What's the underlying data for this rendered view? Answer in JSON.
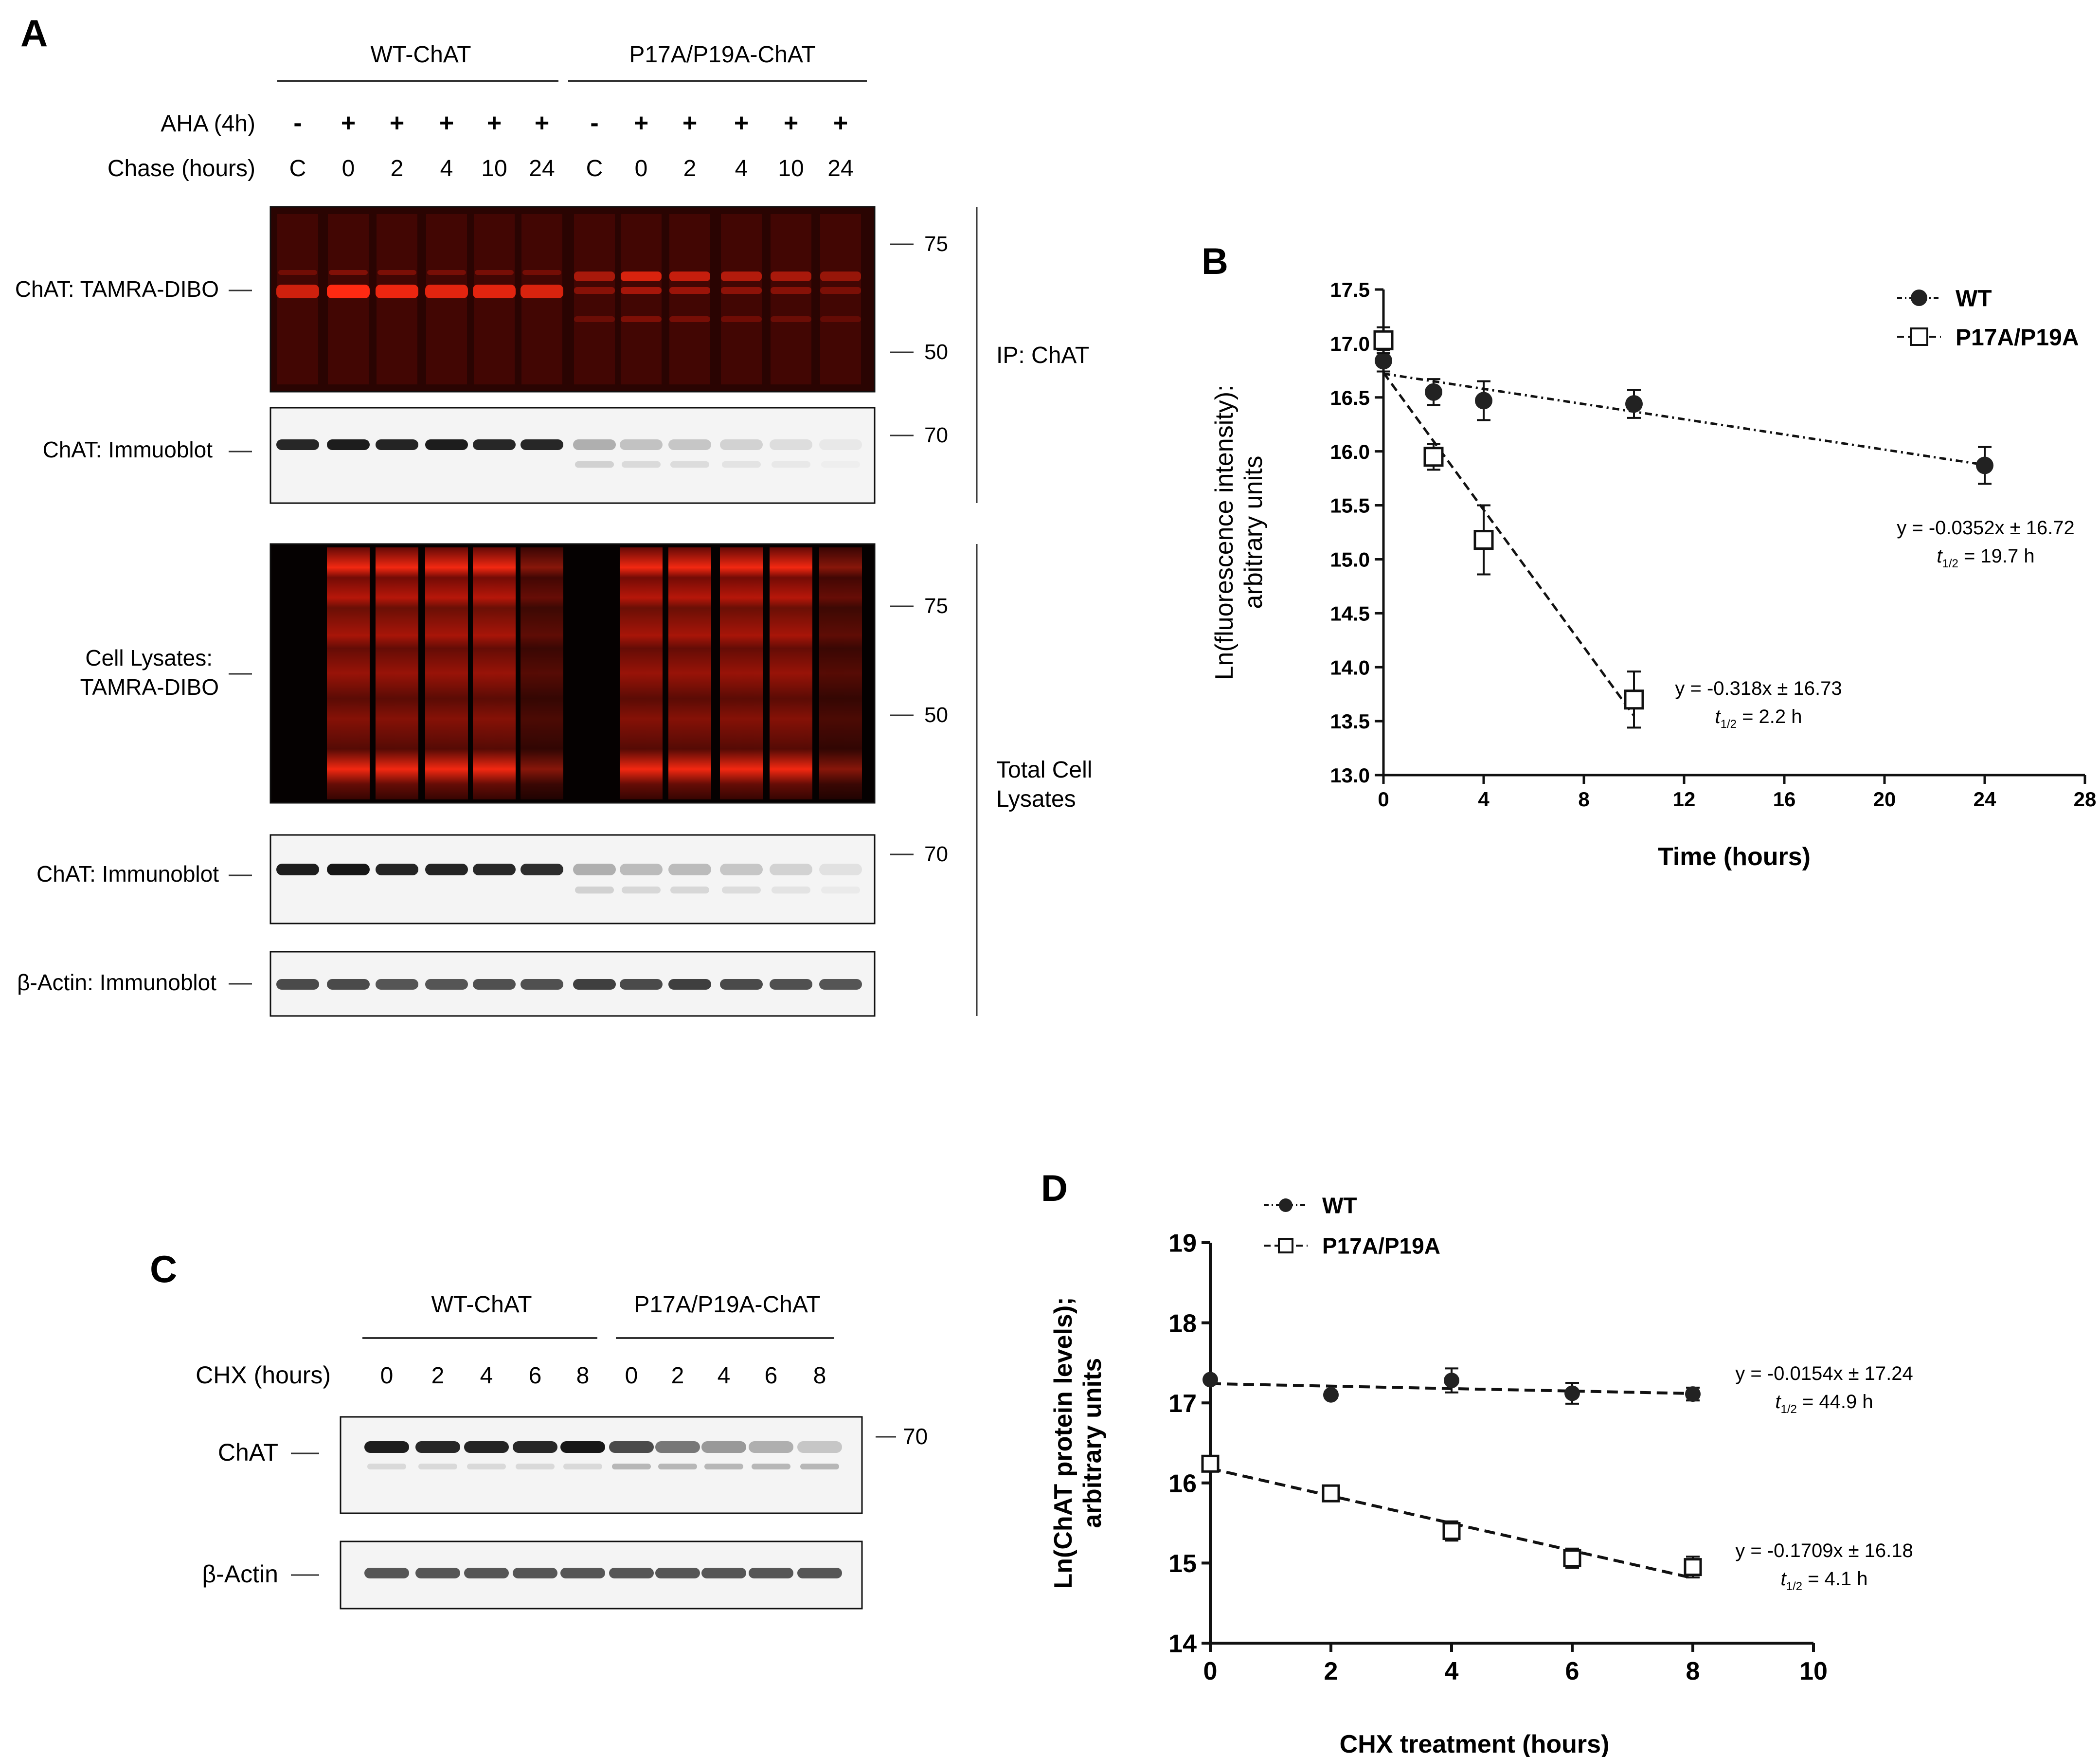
{
  "panelA": {
    "letter": "A",
    "groups": [
      "WT-ChAT",
      "P17A/P19A-ChAT"
    ],
    "aha_label": "AHA (4h)",
    "aha_marks": [
      "-",
      "+",
      "+",
      "+",
      "+",
      "+",
      "-",
      "+",
      "+",
      "+",
      "+",
      "+"
    ],
    "chase_label": "Chase (hours)",
    "chase_values": [
      "C",
      "0",
      "2",
      "4",
      "10",
      "24",
      "C",
      "0",
      "2",
      "4",
      "10",
      "24"
    ],
    "blot_labels": [
      "ChAT: TAMRA-DIBO",
      "ChAT: Immuoblot",
      "Cell Lysates:",
      "TAMRA-DIBO",
      "ChAT: Immunoblot",
      "β-Actin: Immunoblot"
    ],
    "markers": [
      "75",
      "50",
      "70",
      "75",
      "50",
      "70"
    ],
    "sections": [
      "IP: ChAT",
      "Total Cell",
      "Lysates"
    ]
  },
  "panelC": {
    "letter": "C",
    "groups": [
      "WT-ChAT",
      "P17A/P19A-ChAT"
    ],
    "chx_label": "CHX (hours)",
    "chx_values": [
      "0",
      "2",
      "4",
      "6",
      "8",
      "0",
      "2",
      "4",
      "6",
      "8"
    ],
    "blot_labels": [
      "ChAT",
      "β-Actin"
    ],
    "marker": "70"
  },
  "chart_data": [
    {
      "panel": "B",
      "type": "scatter",
      "xlabel": "Time (hours)",
      "ylabel": [
        "Ln(fluorescence intensity):",
        "arbitrary units"
      ],
      "xlim": [
        0,
        28
      ],
      "ylim": [
        13.0,
        17.5
      ],
      "xticks": [
        "0",
        "4",
        "8",
        "12",
        "16",
        "20",
        "24",
        "28"
      ],
      "yticks": [
        "13.0",
        "13.5",
        "14.0",
        "14.5",
        "15.0",
        "15.5",
        "16.0",
        "16.5",
        "17.0",
        "17.5"
      ],
      "legend": "top-right",
      "series": [
        {
          "name": "WT",
          "marker": "filled-circle",
          "x": [
            0,
            2,
            4,
            10,
            24
          ],
          "y": [
            16.84,
            16.55,
            16.47,
            16.44,
            15.87
          ],
          "err": [
            0.1,
            0.12,
            0.18,
            0.13,
            0.17
          ],
          "fit": {
            "slope": -0.0352,
            "intercept": 16.72
          }
        },
        {
          "name": "P17A/P19A",
          "marker": "open-square",
          "x": [
            0,
            2,
            4,
            10
          ],
          "y": [
            17.03,
            15.95,
            15.18,
            13.7
          ],
          "err": [
            0.12,
            0.12,
            0.32,
            0.26
          ],
          "fit": {
            "slope": -0.318,
            "intercept": 16.73
          }
        }
      ],
      "annotations": [
        {
          "eq": "y = -0.0352x ± 16.72",
          "t_sym": "t",
          "t_sub": "1/2",
          "t_val": " = 19.7 h"
        },
        {
          "eq": "y = -0.318x ± 16.73",
          "t_sym": "t",
          "t_sub": "1/2",
          "t_val": " = 2.2 h"
        }
      ]
    },
    {
      "panel": "D",
      "type": "scatter",
      "xlabel": "CHX treatment (hours)",
      "ylabel": [
        "Ln(ChAT protein levels);",
        "arbitrary units"
      ],
      "xlim": [
        0,
        10
      ],
      "ylim": [
        14,
        19
      ],
      "xticks": [
        "0",
        "2",
        "4",
        "6",
        "8",
        "10"
      ],
      "yticks": [
        "14",
        "15",
        "16",
        "17",
        "18",
        "19"
      ],
      "legend": "top-left",
      "series": [
        {
          "name": "WT",
          "marker": "filled-circle",
          "x": [
            0,
            2,
            4,
            6,
            8
          ],
          "y": [
            17.29,
            17.1,
            17.28,
            17.12,
            17.11
          ],
          "err": [
            0.03,
            0.03,
            0.15,
            0.13,
            0.08
          ],
          "fit": {
            "slope": -0.0154,
            "intercept": 17.24
          }
        },
        {
          "name": "P17A/P19A",
          "marker": "open-square",
          "x": [
            0,
            2,
            4,
            6,
            8
          ],
          "y": [
            16.24,
            15.87,
            15.4,
            15.06,
            14.95
          ],
          "err": [
            0.05,
            0.08,
            0.12,
            0.12,
            0.13
          ],
          "fit": {
            "slope": -0.1709,
            "intercept": 16.18
          }
        }
      ],
      "annotations": [
        {
          "eq": "y = -0.0154x ± 17.24",
          "t_sym": "t",
          "t_sub": "1/2",
          "t_val": " = 44.9 h"
        },
        {
          "eq": "y = -0.1709x ± 16.18",
          "t_sym": "t",
          "t_sub": "1/2",
          "t_val": " = 4.1 h"
        }
      ]
    }
  ],
  "panel_letters": {
    "B": "B",
    "D": "D"
  }
}
